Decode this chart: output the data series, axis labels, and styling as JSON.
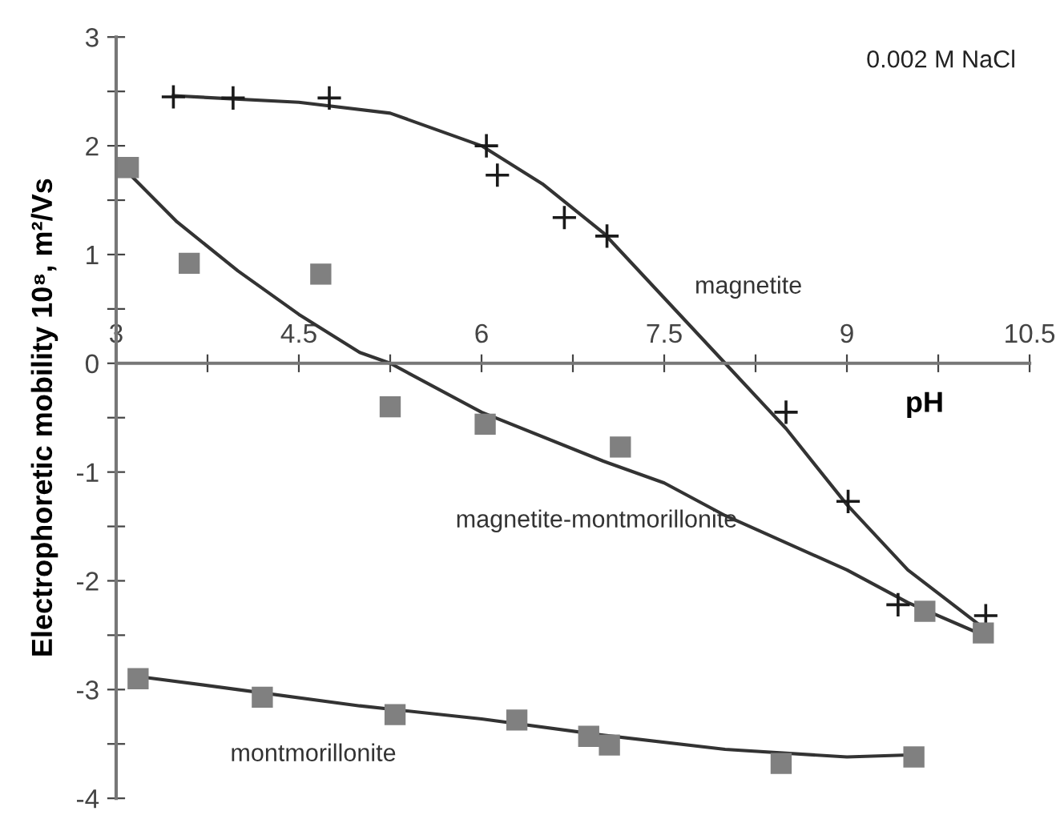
{
  "chart_data": {
    "type": "scatter",
    "ylabel": "Electrophoretic mobility 10⁸, m²/Vs",
    "xlabel": "pH",
    "annotations": [
      "0.002 M NaCl"
    ],
    "xlim": [
      3,
      10.5
    ],
    "ylim": [
      -4,
      3
    ],
    "xticks": [
      3,
      {
        "value": 3.75,
        "label": null
      },
      4.5,
      {
        "value": 5.25,
        "label": null
      },
      6,
      {
        "value": 6.75,
        "label": null
      },
      7.5,
      {
        "value": 8.25,
        "label": null
      },
      9,
      {
        "value": 9.75,
        "label": null
      },
      10.5
    ],
    "yticks": [
      -4,
      {
        "value": -3.5,
        "label": null
      },
      -3,
      {
        "value": -2.5,
        "label": null
      },
      -2,
      {
        "value": -1.5,
        "label": null
      },
      -1,
      {
        "value": -0.5,
        "label": null
      },
      0,
      {
        "value": 0.5,
        "label": null
      },
      1,
      {
        "value": 1.5,
        "label": null
      },
      2,
      {
        "value": 2.5,
        "label": null
      },
      3
    ],
    "grid": false,
    "legend": false,
    "series": [
      {
        "marker": "cross",
        "color": "#1a1a1a",
        "x": [
          3.47,
          3.96,
          4.75,
          6.04,
          6.13,
          6.68,
          7.03,
          8.5,
          9.01,
          9.42,
          10.14
        ],
        "values": [
          2.45,
          2.44,
          2.44,
          2.0,
          1.73,
          1.34,
          1.17,
          -0.45,
          -1.27,
          -2.22,
          -2.32
        ]
      },
      {
        "marker": "square",
        "color": "#808080",
        "x": [
          3.1,
          3.6,
          4.68,
          5.25,
          6.03,
          7.14,
          9.64,
          10.12
        ],
        "values": [
          1.8,
          0.92,
          0.82,
          -0.4,
          -0.56,
          -0.77,
          -2.28,
          -2.48
        ]
      },
      {
        "marker": "square",
        "color": "#808080",
        "x": [
          3.18,
          4.2,
          5.29,
          6.29,
          6.88,
          7.05,
          8.46,
          9.55
        ],
        "values": [
          -2.9,
          -3.07,
          -3.23,
          -3.28,
          -3.43,
          -3.51,
          -3.68,
          -3.62
        ]
      },
      {
        "name": "magnetite",
        "type": "line",
        "marker": "none",
        "line_style": "solid",
        "color": "#333333",
        "x": [
          3.47,
          4.5,
          5.25,
          6,
          6.5,
          7,
          7.5,
          8,
          8.5,
          9,
          9.5,
          10.14
        ],
        "values": [
          2.46,
          2.4,
          2.3,
          2.0,
          1.65,
          1.2,
          0.6,
          0.0,
          -0.6,
          -1.3,
          -1.9,
          -2.45
        ]
      },
      {
        "name": "magnetite-montmorillonite",
        "type": "line",
        "marker": "none",
        "line_style": "solid",
        "color": "#333333",
        "x": [
          3.1,
          3.5,
          4,
          4.5,
          5,
          5.25,
          6,
          7,
          7.5,
          8,
          9,
          9.5,
          10.12
        ],
        "values": [
          1.75,
          1.3,
          0.85,
          0.45,
          0.1,
          0.0,
          -0.45,
          -0.9,
          -1.1,
          -1.4,
          -1.9,
          -2.2,
          -2.5
        ]
      },
      {
        "name": "montmorillonite",
        "type": "line",
        "marker": "none",
        "line_style": "solid",
        "color": "#333333",
        "x": [
          3.18,
          4,
          5,
          6,
          7,
          8,
          9,
          9.55
        ],
        "values": [
          -2.88,
          -3.0,
          -3.15,
          -3.27,
          -3.42,
          -3.55,
          -3.62,
          -3.6
        ]
      }
    ]
  }
}
